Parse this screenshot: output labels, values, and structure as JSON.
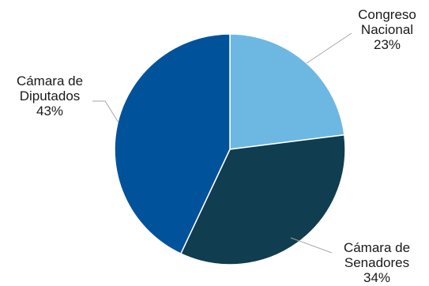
{
  "chart_data": {
    "type": "pie",
    "title": "",
    "legend": "none",
    "start_angle_deg": 0,
    "direction": "clockwise",
    "slices": [
      {
        "label_lines": [
          "Congreso",
          "Nacional"
        ],
        "value": 23,
        "value_label": "23%",
        "color": "#6CB8E2"
      },
      {
        "label_lines": [
          "Cámara de",
          "Senadores"
        ],
        "value": 34,
        "value_label": "34%",
        "color": "#103D50"
      },
      {
        "label_lines": [
          "Cámara de",
          "Diputados"
        ],
        "value": 43,
        "value_label": "43%",
        "color": "#00529B"
      }
    ]
  }
}
